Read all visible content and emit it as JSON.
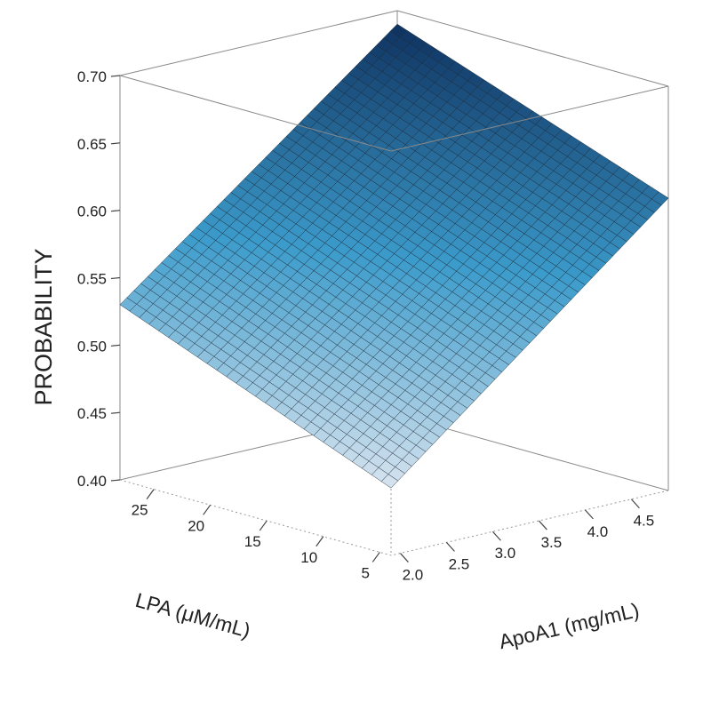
{
  "chart_data": {
    "type": "surface-3d",
    "title": "",
    "x_axis": {
      "label": "LPA (μM/mL)",
      "range": [
        4,
        28
      ],
      "ticks": [
        5,
        10,
        15,
        20,
        25
      ],
      "tick_labels": [
        "5",
        "10",
        "15",
        "20",
        "25"
      ]
    },
    "y_axis": {
      "label": "ApoA1 (mg/mL)",
      "range": [
        1.9,
        4.9
      ],
      "ticks": [
        2.0,
        2.5,
        3.0,
        3.5,
        4.0,
        4.5
      ],
      "tick_labels": [
        "2.0",
        "2.5",
        "3.0",
        "3.5",
        "4.0",
        "4.5"
      ]
    },
    "z_axis": {
      "label": "PROBABILITY",
      "range": [
        0.4,
        0.7
      ],
      "ticks": [
        0.4,
        0.45,
        0.5,
        0.55,
        0.6,
        0.65,
        0.7
      ],
      "tick_labels": [
        "0.40",
        "0.45",
        "0.50",
        "0.55",
        "0.60",
        "0.65",
        "0.70"
      ]
    },
    "surface": {
      "grid_x": 28,
      "grid_y": 40,
      "corners": [
        {
          "lpa": 4,
          "apoa1": 1.9,
          "probability": 0.45
        },
        {
          "lpa": 28,
          "apoa1": 1.9,
          "probability": 0.53
        },
        {
          "lpa": 4,
          "apoa1": 4.9,
          "probability": 0.617
        },
        {
          "lpa": 28,
          "apoa1": 4.9,
          "probability": 0.69
        }
      ]
    },
    "colormap": {
      "low": "#dde6f0",
      "mid": "#3b9bcb",
      "high": "#0d2e5c"
    },
    "grid": false,
    "legend": "none"
  }
}
